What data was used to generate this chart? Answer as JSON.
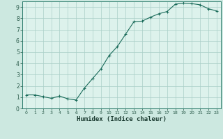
{
  "x": [
    0,
    1,
    2,
    3,
    4,
    5,
    6,
    7,
    8,
    9,
    10,
    11,
    12,
    13,
    14,
    15,
    16,
    17,
    18,
    19,
    20,
    21,
    22,
    23
  ],
  "y": [
    1.2,
    1.2,
    1.05,
    0.9,
    1.1,
    0.85,
    0.75,
    1.8,
    2.65,
    3.5,
    4.7,
    5.5,
    6.6,
    7.7,
    7.75,
    8.1,
    8.4,
    8.6,
    9.25,
    9.35,
    9.3,
    9.2,
    8.85,
    8.65
  ],
  "xlabel": "Humidex (Indice chaleur)",
  "xlim": [
    -0.5,
    23.5
  ],
  "ylim": [
    0,
    9.5
  ],
  "yticks": [
    0,
    1,
    2,
    3,
    4,
    5,
    6,
    7,
    8,
    9
  ],
  "xticks": [
    0,
    1,
    2,
    3,
    4,
    5,
    6,
    7,
    8,
    9,
    10,
    11,
    12,
    13,
    14,
    15,
    16,
    17,
    18,
    19,
    20,
    21,
    22,
    23
  ],
  "line_color": "#1a6b5a",
  "marker_color": "#1a6b5a",
  "bg_color": "#cce8e0",
  "grid_color": "#aacfc8",
  "plot_bg": "#ddf2ec",
  "xlabel_color": "#1a3a30",
  "spine_color": "#2a7a6a",
  "tick_color": "#2a5a4a"
}
